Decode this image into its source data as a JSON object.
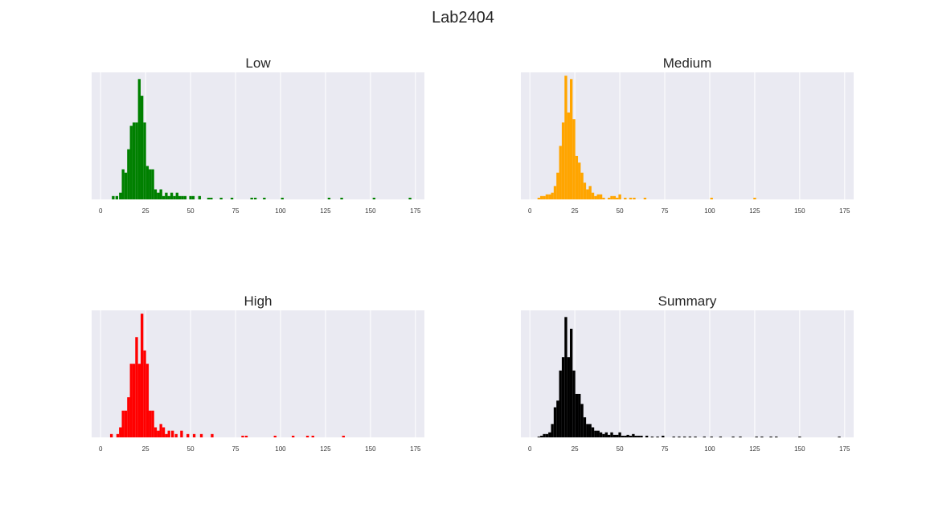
{
  "figure": {
    "title": "Lab2404"
  },
  "chart_data": [
    {
      "type": "bar",
      "title": "Low",
      "color": "#008000",
      "xlim": [
        -5,
        180
      ],
      "xticks": [
        0,
        25,
        50,
        75,
        100,
        125,
        150,
        175
      ],
      "ylim": [
        0,
        38
      ],
      "grid": true,
      "bin_width": 1.5,
      "x": [
        7,
        9,
        11,
        12.5,
        14,
        15.5,
        17,
        18.5,
        20,
        21.5,
        23,
        24.5,
        26,
        27.5,
        29,
        30.5,
        32,
        33.5,
        35,
        36.5,
        38,
        39.5,
        41,
        42.5,
        44,
        45.5,
        47,
        50,
        51.5,
        55,
        60,
        61.5,
        67,
        73,
        84,
        86,
        91,
        101,
        127,
        134,
        152,
        172
      ],
      "values": [
        1,
        1,
        2,
        9,
        8,
        15,
        22,
        23,
        23,
        36,
        31,
        23,
        10,
        9,
        9,
        3,
        2,
        3,
        1,
        2,
        1,
        2,
        1,
        2,
        1,
        1,
        1,
        1,
        1,
        1,
        0.5,
        0.5,
        0.5,
        0.5,
        0.5,
        0.5,
        0.5,
        0.5,
        0.5,
        0.5,
        0.5,
        0.5
      ]
    },
    {
      "type": "bar",
      "title": "Medium",
      "color": "#ffa500",
      "xlim": [
        -5,
        180
      ],
      "xticks": [
        0,
        25,
        50,
        75,
        100,
        125,
        150,
        175
      ],
      "ylim": [
        0,
        38
      ],
      "grid": true,
      "bin_width": 1.5,
      "x": [
        5,
        6.5,
        8,
        9.5,
        11,
        12.5,
        14,
        15.5,
        17,
        18.5,
        20,
        21.5,
        23,
        24.5,
        26,
        27.5,
        29,
        30.5,
        32,
        33.5,
        35,
        36.5,
        38,
        39.5,
        41,
        44,
        45.5,
        47,
        48.5,
        50,
        53,
        56,
        58,
        64,
        101,
        125
      ],
      "values": [
        0.5,
        1,
        1,
        1.5,
        1.5,
        2,
        4,
        8,
        16,
        23,
        37,
        26,
        36,
        24,
        13,
        11,
        8,
        5,
        3,
        4,
        2,
        1,
        1.5,
        1.5,
        0.5,
        0.5,
        1,
        1,
        0.5,
        1.5,
        0.5,
        0.5,
        0.5,
        0.5,
        0.5,
        0.5
      ]
    },
    {
      "type": "bar",
      "title": "High",
      "color": "#ff0000",
      "xlim": [
        -5,
        180
      ],
      "xticks": [
        0,
        25,
        50,
        75,
        100,
        125,
        150,
        175
      ],
      "ylim": [
        0,
        38
      ],
      "grid": true,
      "bin_width": 1.5,
      "x": [
        6,
        9.5,
        11,
        12.5,
        14,
        15.5,
        17,
        18.5,
        20,
        21.5,
        23,
        24.5,
        26,
        27.5,
        29,
        30.5,
        32,
        33.5,
        35,
        36.5,
        38,
        40,
        42,
        45,
        48.5,
        52,
        56,
        62,
        79,
        81,
        97,
        107,
        115,
        118,
        135
      ],
      "values": [
        1,
        1,
        3,
        8,
        8,
        12,
        22,
        22,
        30,
        22,
        37,
        26,
        22,
        8,
        8,
        3,
        2,
        4,
        3,
        1,
        2,
        2,
        1,
        2,
        1,
        1,
        1,
        1,
        0.5,
        0.5,
        0.5,
        0.5,
        0.5,
        0.5,
        0.5
      ]
    },
    {
      "type": "bar",
      "title": "Summary",
      "color": "#000000",
      "xlim": [
        -5,
        180
      ],
      "xticks": [
        0,
        25,
        50,
        75,
        100,
        125,
        150,
        175
      ],
      "ylim": [
        0,
        76
      ],
      "grid": true,
      "bin_width": 1.5,
      "x": [
        5,
        6.5,
        8,
        9.5,
        11,
        12.5,
        14,
        15.5,
        17,
        18.5,
        20,
        21.5,
        23,
        24.5,
        26,
        27.5,
        29,
        30.5,
        32,
        33.5,
        35,
        36.5,
        38,
        39.5,
        41,
        42.5,
        44,
        45.5,
        47,
        48.5,
        50,
        51.5,
        53,
        54.5,
        56,
        57.5,
        59,
        60.5,
        62,
        65,
        68,
        71,
        74,
        80,
        83,
        86,
        89,
        92,
        97,
        101,
        106,
        113,
        117,
        126,
        129,
        134,
        137,
        150,
        172
      ],
      "values": [
        0.5,
        1,
        2,
        2,
        3,
        8,
        18,
        22,
        40,
        48,
        72,
        48,
        65,
        40,
        26,
        26,
        20,
        12,
        8,
        8,
        6,
        4,
        4,
        3,
        2,
        3,
        1.5,
        3,
        1.5,
        1.5,
        3,
        1,
        1,
        1.5,
        1,
        2,
        1,
        1,
        1,
        1,
        0.5,
        0.5,
        1,
        0.5,
        0.5,
        0.5,
        0.5,
        0.5,
        0.5,
        0.5,
        0.5,
        0.5,
        0.5,
        0.5,
        0.5,
        0.5,
        0.5,
        0.5,
        0.5
      ]
    }
  ]
}
